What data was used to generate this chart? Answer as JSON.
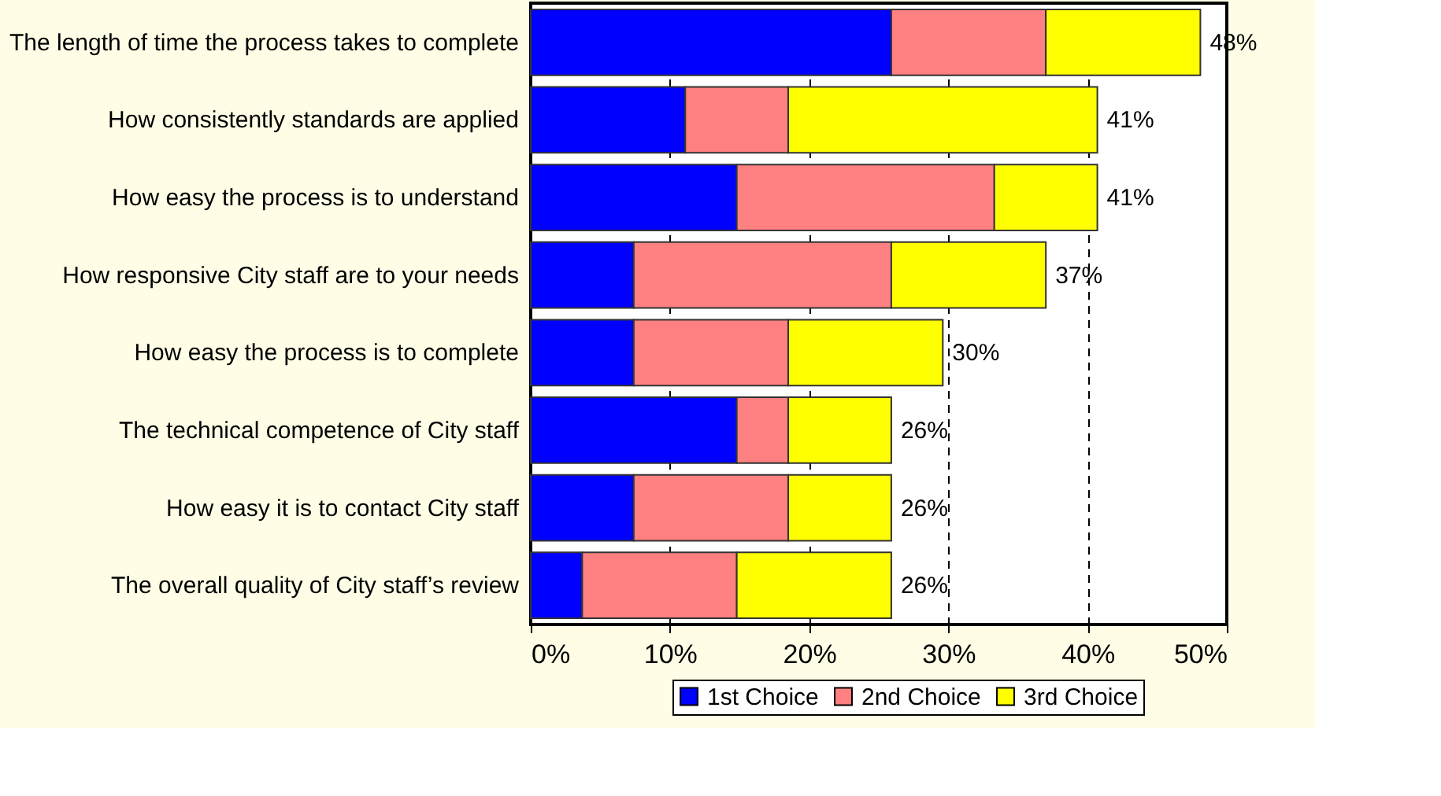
{
  "chart_data": {
    "type": "bar",
    "orientation": "horizontal",
    "stacked": true,
    "categories": [
      "The length of time the process takes to complete",
      "How consistently standards are applied",
      "How easy the process is to understand",
      "How responsive City staff are to your needs",
      "How easy the process is to complete",
      "The technical competence of City staff",
      "How easy it is to contact City staff",
      "The overall quality of City staff’s review"
    ],
    "series": [
      {
        "name": "1st Choice",
        "color": "#0000ff",
        "values": [
          25.9,
          11.1,
          14.8,
          7.4,
          7.4,
          14.8,
          7.4,
          3.7
        ]
      },
      {
        "name": "2nd Choice",
        "color": "#ff8080",
        "values": [
          11.1,
          7.4,
          18.5,
          18.5,
          11.1,
          3.7,
          11.1,
          11.1
        ]
      },
      {
        "name": "3rd Choice",
        "color": "#ffff00",
        "values": [
          11.1,
          22.2,
          7.4,
          11.1,
          11.1,
          7.4,
          7.4,
          11.1
        ]
      }
    ],
    "totals": [
      "48%",
      "41%",
      "41%",
      "37%",
      "30%",
      "26%",
      "26%",
      "26%"
    ],
    "xlim": [
      0,
      50
    ],
    "xticks": [
      {
        "value": 0,
        "label": "0%"
      },
      {
        "value": 10,
        "label": "10%"
      },
      {
        "value": 20,
        "label": "20%"
      },
      {
        "value": 30,
        "label": "30%"
      },
      {
        "value": 40,
        "label": "40%"
      },
      {
        "value": 50,
        "label": "50%"
      }
    ],
    "grid": "x",
    "line_style": "dashed",
    "legend": "bottom right"
  }
}
